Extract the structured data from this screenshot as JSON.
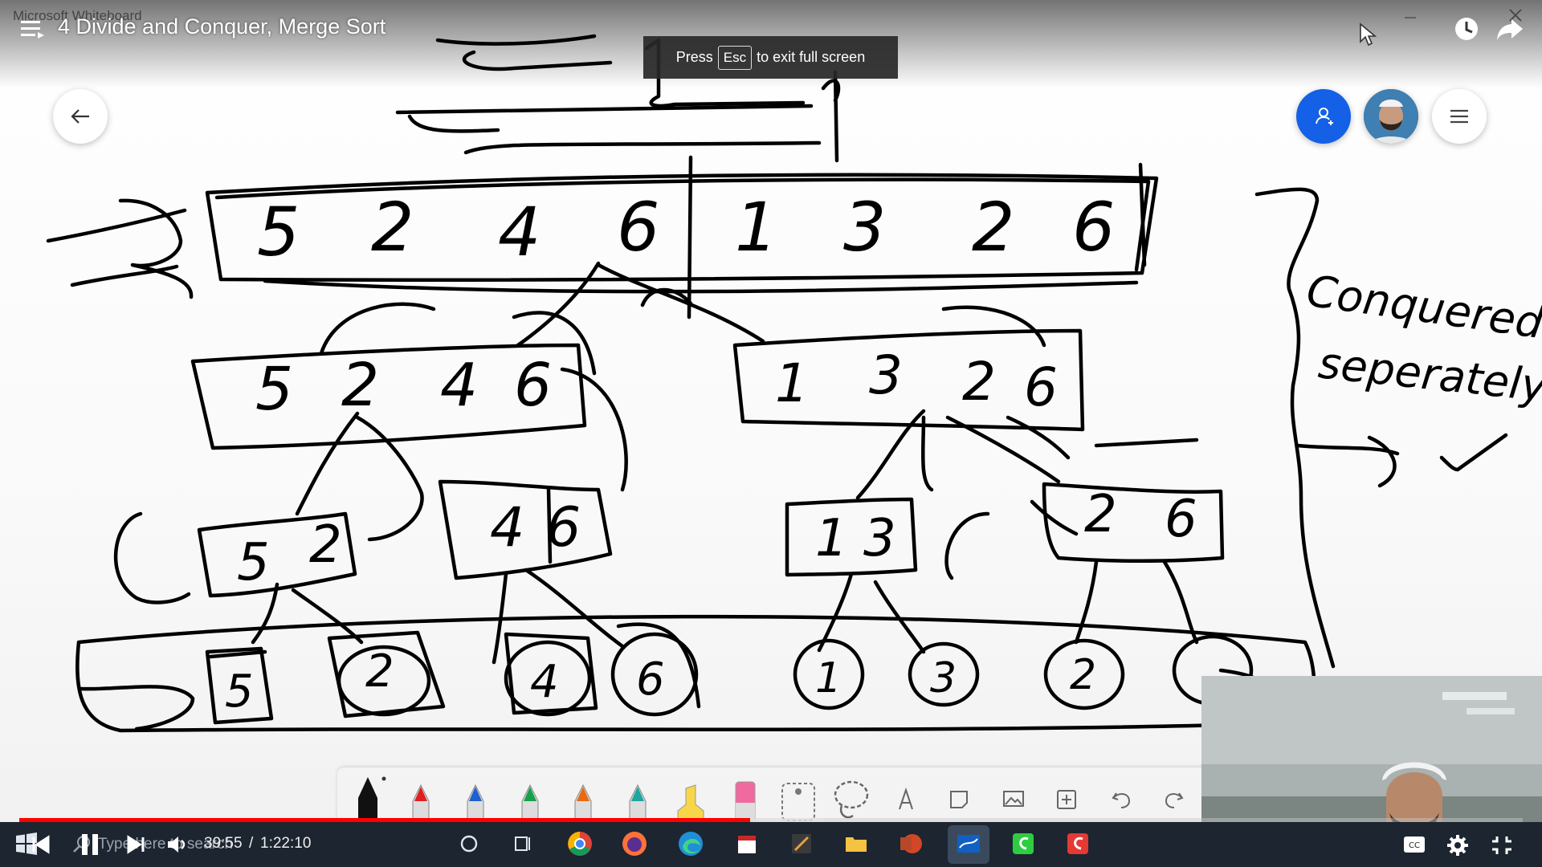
{
  "whiteboard": {
    "app_title": "Microsoft Whiteboard",
    "annotation": {
      "line1": "Conquered",
      "line2": "seperately"
    },
    "top_array": [
      "5",
      "2",
      "4",
      "6",
      "1",
      "3",
      "2",
      "6"
    ],
    "level1": {
      "left": [
        "5",
        "2",
        "4",
        "6"
      ],
      "right": [
        "1",
        "3",
        "2",
        "6"
      ]
    },
    "level2": [
      [
        "5",
        "2"
      ],
      [
        "4",
        "6"
      ],
      [
        "1",
        "3"
      ],
      [
        "2",
        "6"
      ]
    ],
    "level3": [
      "5",
      "2",
      "4",
      "6",
      "1",
      "3",
      "2",
      ""
    ],
    "toolbar_tools": [
      "pen-black",
      "pen-red",
      "pen-blue",
      "pen-green",
      "pen-orange",
      "pen-teal",
      "highlighter-yellow",
      "eraser",
      "ruler",
      "lasso",
      "text",
      "note",
      "image",
      "insert",
      "undo",
      "redo"
    ]
  },
  "player": {
    "title": "4 Divide and Conquer, Merge Sort",
    "esc_toast": {
      "before": "Press",
      "key": "Esc",
      "after": "to exit full screen"
    },
    "time_current": "39:55",
    "time_separator": "/",
    "time_total": "1:22:10",
    "progress_fraction": 0.486
  },
  "taskbar": {
    "search_placeholder": "Type here to search",
    "apps": [
      "cortana",
      "task-view",
      "chrome",
      "firefox",
      "edge",
      "calendar",
      "paint",
      "file-explorer",
      "powerpoint",
      "whiteboard",
      "app-green",
      "app-red"
    ]
  },
  "colors": {
    "progress": "#ff0000",
    "invite": "#1460e6",
    "taskbar": "#1c2530"
  }
}
